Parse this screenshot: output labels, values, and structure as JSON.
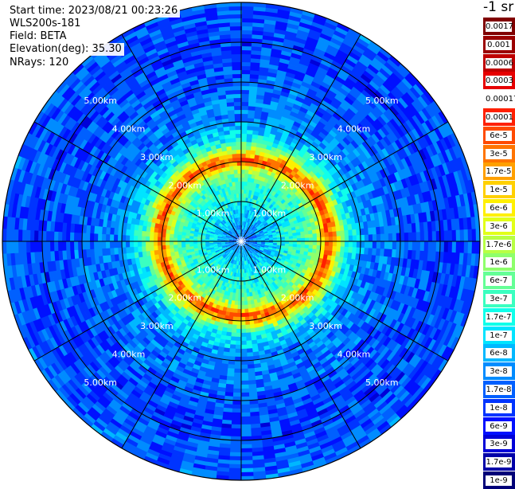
{
  "info": {
    "start_time": "Start time: 2023/08/21 00:23:26",
    "instrument": "WLS200s-181",
    "field": "Field: BETA",
    "elevation": "Elevation(deg): 35.30",
    "nrays": "NRays: 120"
  },
  "legend": {
    "unit": "-1 sr",
    "entries": [
      {
        "label": "0.0017",
        "color": "#800000"
      },
      {
        "label": "0.001",
        "color": "#9b0000"
      },
      {
        "label": "0.0006",
        "color": "#bf0000"
      },
      {
        "label": "0.0003",
        "color": "#e60000"
      },
      {
        "label": "0.00017",
        "color": "#ffffff"
      },
      {
        "label": "0.0001",
        "color": "#ff2000"
      },
      {
        "label": "6e-5",
        "color": "#ff4a00"
      },
      {
        "label": "3e-5",
        "color": "#ff7400"
      },
      {
        "label": "1.7e-5",
        "color": "#ffa000"
      },
      {
        "label": "1e-5",
        "color": "#ffd000"
      },
      {
        "label": "6e-6",
        "color": "#fff000"
      },
      {
        "label": "3e-6",
        "color": "#e2ff18"
      },
      {
        "label": "1.7e-6",
        "color": "#b8ff44"
      },
      {
        "label": "1e-6",
        "color": "#8eff6c"
      },
      {
        "label": "6e-7",
        "color": "#64ff96"
      },
      {
        "label": "3e-7",
        "color": "#3affc0"
      },
      {
        "label": "1.7e-7",
        "color": "#10ffea"
      },
      {
        "label": "1e-7",
        "color": "#00e4ff"
      },
      {
        "label": "6e-8",
        "color": "#00b8ff"
      },
      {
        "label": "3e-8",
        "color": "#008cff"
      },
      {
        "label": "1.7e-8",
        "color": "#0060ff"
      },
      {
        "label": "1e-8",
        "color": "#0034ff"
      },
      {
        "label": "6e-9",
        "color": "#0010ff"
      },
      {
        "label": "3e-9",
        "color": "#0000d8"
      },
      {
        "label": "1.7e-9",
        "color": "#0000a8"
      },
      {
        "label": "1e-9",
        "color": "#000078"
      }
    ]
  },
  "chart_data": {
    "type": "heatmap",
    "projection": "polar",
    "rings_km": [
      1,
      2,
      3,
      4,
      5
    ],
    "ring_labels": [
      "1.00km",
      "2.00km",
      "3.00km",
      "4.00km",
      "5.00km"
    ],
    "max_range_km": 6.0,
    "spoke_angles_deg": [
      0,
      30,
      60,
      90,
      120,
      150,
      180,
      210,
      240,
      270,
      300,
      330
    ],
    "n_rays": 120,
    "radial_profile": [
      {
        "range_km": 0.0,
        "value": "1.7e-8"
      },
      {
        "range_km": 0.5,
        "value": "6e-8"
      },
      {
        "range_km": 1.0,
        "value": "1.7e-7"
      },
      {
        "range_km": 1.5,
        "value": "3e-7"
      },
      {
        "range_km": 1.8,
        "value": "1.7e-6"
      },
      {
        "range_km": 2.0,
        "value": "6e-5"
      },
      {
        "range_km": 2.15,
        "value": "1.7e-5"
      },
      {
        "range_km": 2.3,
        "value": "1.7e-6"
      },
      {
        "range_km": 2.5,
        "value": "1.7e-7"
      },
      {
        "range_km": 3.0,
        "value": "3e-8"
      },
      {
        "range_km": 4.0,
        "value": "1.7e-8"
      },
      {
        "range_km": 5.0,
        "value": "1e-8"
      },
      {
        "range_km": 6.0,
        "value": "1.7e-8"
      }
    ]
  }
}
